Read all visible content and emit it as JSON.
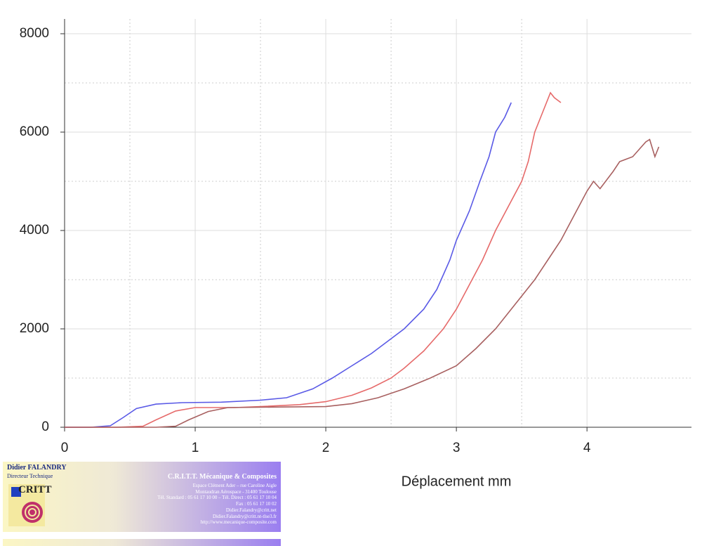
{
  "chart_data": {
    "type": "line",
    "x_label": "Déplacement mm",
    "xlim": [
      0,
      4.8
    ],
    "xticks": [
      0,
      1,
      2,
      3,
      4
    ],
    "ylim": [
      0,
      8300
    ],
    "yticks": [
      0,
      2000,
      4000,
      6000,
      8000
    ],
    "grid": true,
    "series": [
      {
        "color": "#5a5ae6",
        "x": [
          0,
          0.2,
          0.35,
          0.45,
          0.55,
          0.7,
          0.9,
          1.2,
          1.5,
          1.7,
          1.9,
          2.05,
          2.2,
          2.35,
          2.5,
          2.6,
          2.75,
          2.85,
          2.95,
          3.0,
          3.1,
          3.18,
          3.25,
          3.3,
          3.37,
          3.42
        ],
        "values": [
          0,
          0,
          30,
          200,
          380,
          470,
          500,
          510,
          550,
          600,
          780,
          1000,
          1250,
          1500,
          1800,
          2000,
          2400,
          2800,
          3400,
          3800,
          4400,
          5000,
          5500,
          6000,
          6300,
          6600
        ]
      },
      {
        "color": "#e66a6a",
        "x": [
          0,
          0.4,
          0.6,
          0.7,
          0.85,
          1.0,
          1.3,
          1.5,
          1.8,
          2.0,
          2.2,
          2.35,
          2.5,
          2.6,
          2.75,
          2.9,
          3.0,
          3.12,
          3.2,
          3.3,
          3.4,
          3.5,
          3.55,
          3.6,
          3.66,
          3.72,
          3.75,
          3.8
        ],
        "values": [
          0,
          0,
          20,
          150,
          330,
          400,
          400,
          420,
          460,
          520,
          650,
          800,
          1000,
          1200,
          1550,
          2000,
          2400,
          3000,
          3400,
          4000,
          4500,
          5000,
          5400,
          6000,
          6400,
          6800,
          6700,
          6600
        ]
      },
      {
        "color": "#a86060",
        "x": [
          0,
          0.7,
          0.85,
          0.95,
          1.1,
          1.25,
          1.6,
          2.0,
          2.2,
          2.4,
          2.6,
          2.8,
          3.0,
          3.15,
          3.3,
          3.45,
          3.6,
          3.7,
          3.8,
          3.9,
          4.0,
          4.05,
          4.1,
          4.2,
          4.25,
          4.35,
          4.45,
          4.48,
          4.52,
          4.55
        ],
        "values": [
          0,
          0,
          20,
          150,
          320,
          400,
          410,
          420,
          480,
          600,
          780,
          1000,
          1250,
          1600,
          2000,
          2500,
          3000,
          3400,
          3800,
          4300,
          4800,
          5000,
          4850,
          5200,
          5400,
          5500,
          5800,
          5850,
          5500,
          5700
        ]
      }
    ]
  },
  "business_card": {
    "name": "Didier FALANDRY",
    "role": "Directeur Technique",
    "logo": "CRITT",
    "company": "C.R.I.T.T. Mécanique & Composites",
    "lines": [
      "Espace Clément Ader – rue Caroline Aigle",
      "Montaudran Aérospace - 31400 Toulouse",
      "Tél. Standard : 05 61 17 10 00 – Tél. Direct : 05 61 17 10 04",
      "Fax : 05 61 17 10 02",
      "Didier.Falandry@critt.net",
      "Didier.Falandry@critt.nt-tlse3.fr",
      "http://www.mecanique-composite.com"
    ]
  }
}
